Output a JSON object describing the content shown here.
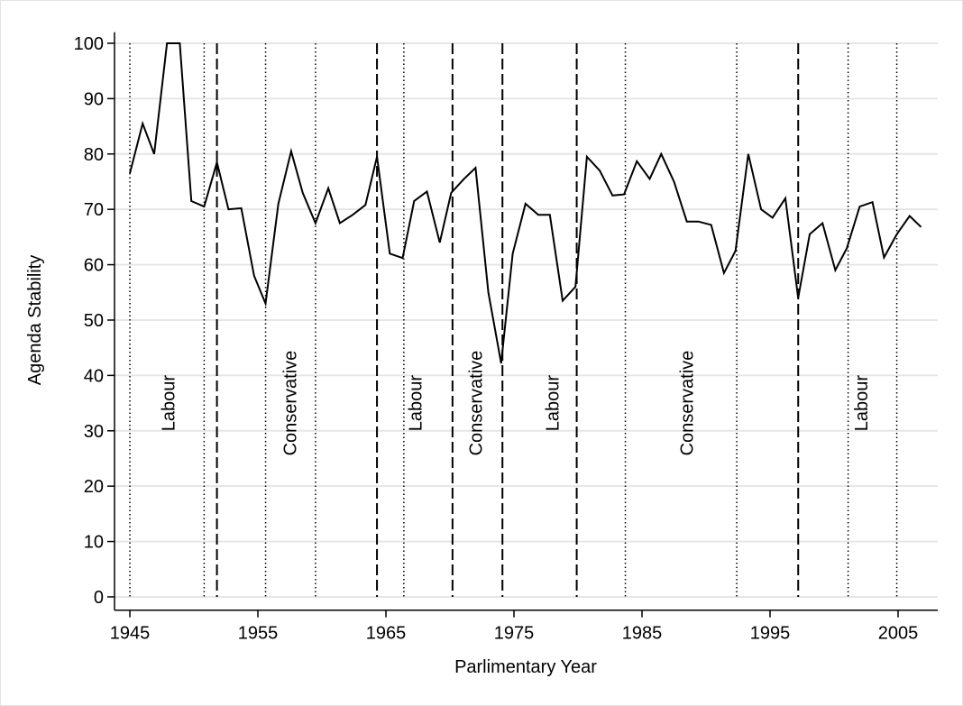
{
  "chart_data": {
    "type": "line",
    "x_label": "Parlimentary Year",
    "y_label": "Agenda Stability",
    "x": [
      1945.0,
      1946.0,
      1946.9,
      1947.9,
      1948.9,
      1949.8,
      1950.8,
      1951.8,
      1952.7,
      1953.7,
      1954.7,
      1955.6,
      1956.6,
      1957.6,
      1958.5,
      1959.5,
      1960.5,
      1961.4,
      1962.4,
      1963.4,
      1964.3,
      1965.3,
      1966.3,
      1967.2,
      1968.2,
      1969.2,
      1970.1,
      1971.1,
      1972.0,
      1973.0,
      1974.0,
      1974.9,
      1975.9,
      1976.9,
      1977.8,
      1978.8,
      1979.8,
      1980.7,
      1981.7,
      1982.7,
      1983.6,
      1984.6,
      1985.6,
      1986.5,
      1987.5,
      1988.5,
      1989.4,
      1990.4,
      1991.4,
      1992.3,
      1993.3,
      1994.3,
      1995.2,
      1996.2,
      1997.2,
      1998.1,
      1999.1,
      2000.1,
      2001.0,
      2002.0,
      2003.0,
      2003.9,
      2004.9,
      2005.9,
      2006.8
    ],
    "series": [
      {
        "color": "#000000",
        "values": [
          76.5,
          85.5,
          80,
          100,
          100,
          71.5,
          70.5,
          78.5,
          70,
          70.2,
          58,
          53,
          71,
          80.5,
          73,
          67.5,
          73.8,
          67.5,
          69,
          70.8,
          79.5,
          62,
          61.2,
          71.5,
          73.2,
          64,
          73,
          75.5,
          77.5,
          55,
          42.2,
          62,
          71,
          69,
          69,
          53.5,
          56,
          79.5,
          77,
          72.5,
          72.7,
          78.7,
          75.5,
          80,
          75,
          67.8,
          67.8,
          67.2,
          58.5,
          62.5,
          80,
          70,
          68.5,
          72,
          54,
          65.5,
          67.5,
          59,
          63,
          70.5,
          71.3,
          61.3,
          65.5,
          68.8,
          66.8
        ]
      }
    ],
    "xlim": [
      1943.8,
      2008.1
    ],
    "ylim": [
      -2.4,
      102
    ],
    "xticks": [
      1945,
      1955,
      1965,
      1975,
      1985,
      1995,
      2005
    ],
    "yticks": [
      0,
      10,
      20,
      30,
      40,
      50,
      60,
      70,
      80,
      90,
      100
    ],
    "grid": true,
    "dashed_lines": [
      1951.8,
      1964.3,
      1970.2,
      1974.1,
      1979.9,
      1997.2
    ],
    "dotted_lines": [
      1945.0,
      1950.8,
      1955.6,
      1959.5,
      1966.4,
      1983.7,
      1992.4,
      2001.1,
      2004.9
    ],
    "annotations": [
      {
        "text": "Labour",
        "x": 1948,
        "y": 35
      },
      {
        "text": "Conservative",
        "x": 1957.5,
        "y": 35
      },
      {
        "text": "Labour",
        "x": 1967.3,
        "y": 35
      },
      {
        "text": "Conservative",
        "x": 1972,
        "y": 35
      },
      {
        "text": "Labour",
        "x": 1978,
        "y": 35
      },
      {
        "text": "Conservative",
        "x": 1988.5,
        "y": 35
      },
      {
        "text": "Labour",
        "x": 2002.1,
        "y": 35
      }
    ]
  }
}
